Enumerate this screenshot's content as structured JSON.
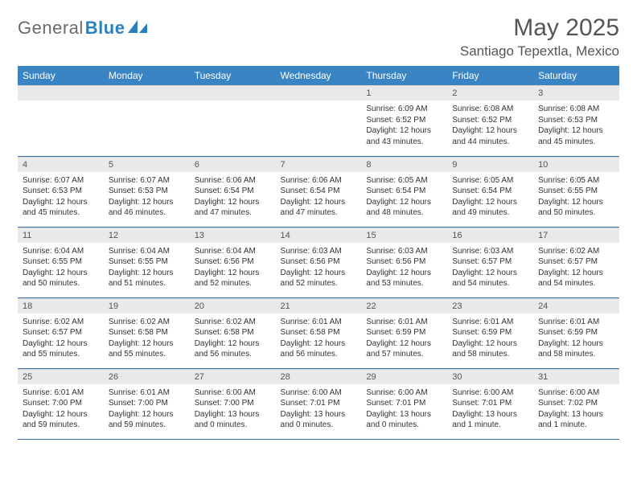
{
  "brand": {
    "part1": "General",
    "part2": "Blue"
  },
  "title": "May 2025",
  "location": "Santiago Tepextla, Mexico",
  "colors": {
    "header_bg": "#3b84c4",
    "header_text": "#ffffff",
    "daynum_bg": "#e9e9e9",
    "rule": "#3b6fa0",
    "logo_gray": "#6a6a6a",
    "logo_blue": "#2a7fbf"
  },
  "weekdays": [
    "Sunday",
    "Monday",
    "Tuesday",
    "Wednesday",
    "Thursday",
    "Friday",
    "Saturday"
  ],
  "cells": [
    {
      "blank": true
    },
    {
      "blank": true
    },
    {
      "blank": true
    },
    {
      "blank": true
    },
    {
      "n": "1",
      "sr": "6:09 AM",
      "ss": "6:52 PM",
      "dl": "12 hours and 43 minutes."
    },
    {
      "n": "2",
      "sr": "6:08 AM",
      "ss": "6:52 PM",
      "dl": "12 hours and 44 minutes."
    },
    {
      "n": "3",
      "sr": "6:08 AM",
      "ss": "6:53 PM",
      "dl": "12 hours and 45 minutes."
    },
    {
      "n": "4",
      "sr": "6:07 AM",
      "ss": "6:53 PM",
      "dl": "12 hours and 45 minutes."
    },
    {
      "n": "5",
      "sr": "6:07 AM",
      "ss": "6:53 PM",
      "dl": "12 hours and 46 minutes."
    },
    {
      "n": "6",
      "sr": "6:06 AM",
      "ss": "6:54 PM",
      "dl": "12 hours and 47 minutes."
    },
    {
      "n": "7",
      "sr": "6:06 AM",
      "ss": "6:54 PM",
      "dl": "12 hours and 47 minutes."
    },
    {
      "n": "8",
      "sr": "6:05 AM",
      "ss": "6:54 PM",
      "dl": "12 hours and 48 minutes."
    },
    {
      "n": "9",
      "sr": "6:05 AM",
      "ss": "6:54 PM",
      "dl": "12 hours and 49 minutes."
    },
    {
      "n": "10",
      "sr": "6:05 AM",
      "ss": "6:55 PM",
      "dl": "12 hours and 50 minutes."
    },
    {
      "n": "11",
      "sr": "6:04 AM",
      "ss": "6:55 PM",
      "dl": "12 hours and 50 minutes."
    },
    {
      "n": "12",
      "sr": "6:04 AM",
      "ss": "6:55 PM",
      "dl": "12 hours and 51 minutes."
    },
    {
      "n": "13",
      "sr": "6:04 AM",
      "ss": "6:56 PM",
      "dl": "12 hours and 52 minutes."
    },
    {
      "n": "14",
      "sr": "6:03 AM",
      "ss": "6:56 PM",
      "dl": "12 hours and 52 minutes."
    },
    {
      "n": "15",
      "sr": "6:03 AM",
      "ss": "6:56 PM",
      "dl": "12 hours and 53 minutes."
    },
    {
      "n": "16",
      "sr": "6:03 AM",
      "ss": "6:57 PM",
      "dl": "12 hours and 54 minutes."
    },
    {
      "n": "17",
      "sr": "6:02 AM",
      "ss": "6:57 PM",
      "dl": "12 hours and 54 minutes."
    },
    {
      "n": "18",
      "sr": "6:02 AM",
      "ss": "6:57 PM",
      "dl": "12 hours and 55 minutes."
    },
    {
      "n": "19",
      "sr": "6:02 AM",
      "ss": "6:58 PM",
      "dl": "12 hours and 55 minutes."
    },
    {
      "n": "20",
      "sr": "6:02 AM",
      "ss": "6:58 PM",
      "dl": "12 hours and 56 minutes."
    },
    {
      "n": "21",
      "sr": "6:01 AM",
      "ss": "6:58 PM",
      "dl": "12 hours and 56 minutes."
    },
    {
      "n": "22",
      "sr": "6:01 AM",
      "ss": "6:59 PM",
      "dl": "12 hours and 57 minutes."
    },
    {
      "n": "23",
      "sr": "6:01 AM",
      "ss": "6:59 PM",
      "dl": "12 hours and 58 minutes."
    },
    {
      "n": "24",
      "sr": "6:01 AM",
      "ss": "6:59 PM",
      "dl": "12 hours and 58 minutes."
    },
    {
      "n": "25",
      "sr": "6:01 AM",
      "ss": "7:00 PM",
      "dl": "12 hours and 59 minutes."
    },
    {
      "n": "26",
      "sr": "6:01 AM",
      "ss": "7:00 PM",
      "dl": "12 hours and 59 minutes."
    },
    {
      "n": "27",
      "sr": "6:00 AM",
      "ss": "7:00 PM",
      "dl": "13 hours and 0 minutes."
    },
    {
      "n": "28",
      "sr": "6:00 AM",
      "ss": "7:01 PM",
      "dl": "13 hours and 0 minutes."
    },
    {
      "n": "29",
      "sr": "6:00 AM",
      "ss": "7:01 PM",
      "dl": "13 hours and 0 minutes."
    },
    {
      "n": "30",
      "sr": "6:00 AM",
      "ss": "7:01 PM",
      "dl": "13 hours and 1 minute."
    },
    {
      "n": "31",
      "sr": "6:00 AM",
      "ss": "7:02 PM",
      "dl": "13 hours and 1 minute."
    }
  ],
  "labels": {
    "sunrise": "Sunrise: ",
    "sunset": "Sunset: ",
    "daylight": "Daylight: "
  }
}
